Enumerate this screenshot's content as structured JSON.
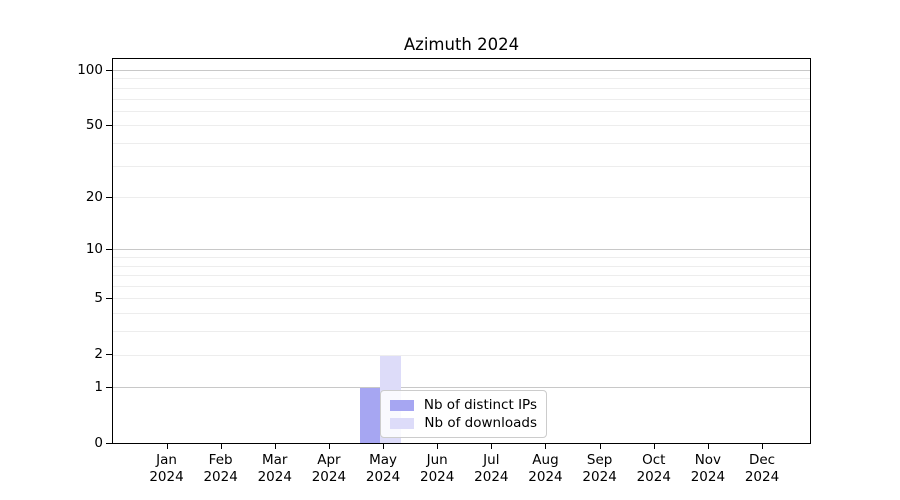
{
  "chart_data": {
    "type": "bar",
    "title": "Azimuth 2024",
    "categories": [
      "Jan 2024",
      "Feb 2024",
      "Mar 2024",
      "Apr 2024",
      "May 2024",
      "Jun 2024",
      "Jul 2024",
      "Aug 2024",
      "Sep 2024",
      "Oct 2024",
      "Nov 2024",
      "Dec 2024"
    ],
    "series": [
      {
        "name": "Nb of distinct IPs",
        "color": "#a6a6f2",
        "values": [
          0,
          0,
          0,
          0,
          1,
          0,
          0,
          0,
          0,
          0,
          0,
          0
        ]
      },
      {
        "name": "Nb of downloads",
        "color": "#dddcf9",
        "values": [
          0,
          0,
          0,
          0,
          2,
          0,
          0,
          0,
          0,
          0,
          0,
          0
        ]
      }
    ],
    "xlabel": "",
    "ylabel": "",
    "yscale": "log1p",
    "ylim": [
      0,
      116
    ],
    "yticks": [
      0,
      1,
      2,
      5,
      10,
      20,
      50,
      100
    ],
    "ytick_labels": [
      "0",
      "1",
      "2",
      "5",
      "10",
      "20",
      "50",
      "100"
    ],
    "major_grid_values": [
      1,
      10,
      100
    ],
    "minor_grid_values": [
      2,
      3,
      4,
      5,
      6,
      7,
      8,
      9,
      20,
      30,
      40,
      50,
      60,
      70,
      80,
      90
    ],
    "grid": true,
    "legend_position": "lower center"
  },
  "colors": {
    "major_grid": "#c8c8c8",
    "minor_grid": "#ededed",
    "axis": "#000000",
    "legend_border": "#cccccc",
    "background": "#ffffff"
  }
}
